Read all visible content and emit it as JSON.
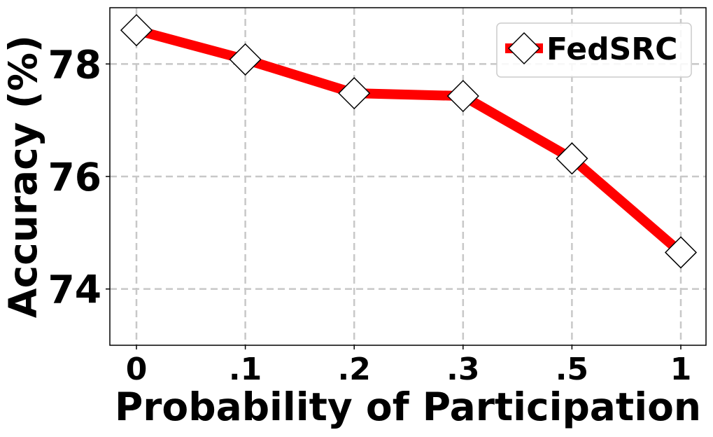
{
  "chart_data": {
    "type": "line",
    "categories": [
      "0",
      ".1",
      ".2",
      ".3",
      ".5",
      "1"
    ],
    "series": [
      {
        "name": "FedSRC",
        "values": [
          78.6,
          78.08,
          77.48,
          77.43,
          76.32,
          74.65
        ],
        "color": "#ff0000",
        "marker": "diamond"
      }
    ],
    "xlabel": "Probability of Participation",
    "ylabel": "Accuracy (%)",
    "yticks": [
      74,
      76,
      78
    ],
    "ylim": [
      73,
      79
    ],
    "grid": true,
    "legend_position": "top-right"
  }
}
